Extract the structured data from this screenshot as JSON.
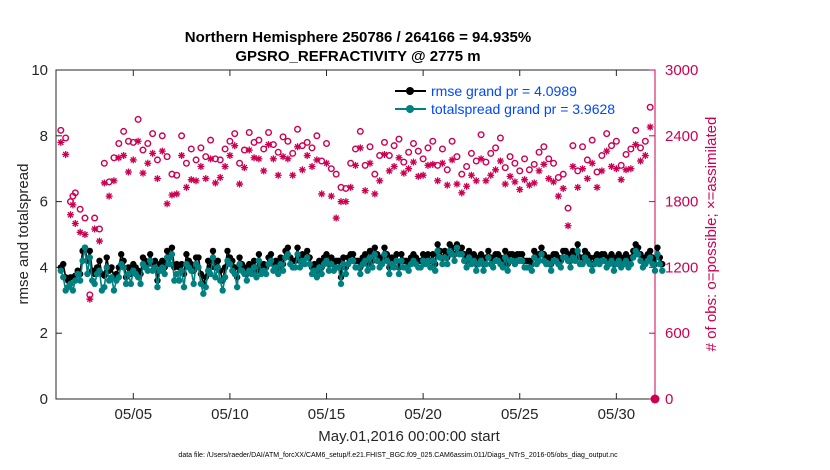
{
  "chart_data": {
    "type": "line",
    "title": "Northern Hemisphere 250786 / 264166 = 94.935%",
    "subtitle": "GPSRO_REFRACTIVITY @ 2775 m",
    "xlabel": "May.01,2016 00:00:00 start",
    "ylabel": "rmse and totalspread",
    "y2label": "# of obs: o=possible; ×=assimilated",
    "footer": "data file: /Users/raeder/DAI/ATM_forcXX/CAM6_setup/f.e21.FHIST_BGC.f09_025.CAM6assim.011/Diags_NTrS_2016-05/obs_diag_output.nc",
    "xlim": [
      1,
      32
    ],
    "ylim": [
      0,
      10
    ],
    "y2lim": [
      0,
      3000
    ],
    "xticks": [
      5,
      10,
      15,
      20,
      25,
      30
    ],
    "xticklabels": [
      "05/05",
      "05/10",
      "05/15",
      "05/20",
      "05/25",
      "05/30"
    ],
    "yticks": [
      0,
      2,
      4,
      6,
      8,
      10
    ],
    "yticklabels": [
      "0",
      "2",
      "4",
      "6",
      "8",
      "10"
    ],
    "y2ticks": [
      0,
      600,
      1200,
      1800,
      2400,
      3000
    ],
    "y2ticklabels": [
      "0",
      "600",
      "1200",
      "1800",
      "2400",
      "3000"
    ],
    "colors": {
      "rmse": "#000000",
      "spread": "#008080",
      "obs": "#cc0052",
      "legendText": "#0047ff"
    },
    "legend": [
      "rmse grand pr = 4.0989",
      "totalspread grand pr = 3.9628"
    ],
    "x_start": 1.25,
    "x_step": 0.125,
    "series": [
      {
        "name": "rmse",
        "values": [
          4.0,
          4.1,
          3.7,
          3.6,
          3.7,
          3.7,
          3.75,
          3.9,
          3.8,
          4.5,
          4.6,
          4.2,
          4.5,
          3.9,
          3.8,
          4.0,
          4.2,
          3.8,
          3.75,
          4.3,
          3.9,
          4.0,
          3.7,
          3.8,
          4.0,
          4.4,
          4.2,
          3.7,
          4.0,
          3.8,
          4.1,
          4.0,
          3.9,
          3.8,
          4.3,
          4.2,
          4.1,
          4.4,
          4.1,
          4.2,
          3.6,
          4.1,
          4.2,
          4.0,
          4.5,
          4.3,
          4.6,
          4.0,
          4.1,
          4.0,
          4.1,
          3.8,
          4.4,
          4.2,
          4.1,
          3.9,
          4.3,
          4.3,
          3.8,
          3.5,
          3.7,
          4.2,
          4.0,
          4.5,
          4.0,
          4.2,
          3.9,
          3.6,
          4.0,
          4.5,
          4.3,
          4.2,
          4.0,
          3.7,
          4.3,
          4.1,
          4.0,
          3.8,
          4.1,
          4.0,
          4.2,
          3.9,
          4.4,
          4.0,
          4.1,
          4.0,
          4.3,
          4.4,
          4.1,
          4.2,
          4.0,
          4.3,
          4.1,
          4.5,
          4.6,
          4.3,
          4.2,
          4.2,
          4.6,
          4.2,
          4.4,
          4.3,
          4.5,
          4.3,
          4.0,
          4.1,
          3.9,
          4.2,
          4.0,
          4.3,
          4.4,
          4.1,
          4.3,
          4.1,
          4.2,
          4.2,
          3.7,
          4.3,
          4.0,
          4.3,
          4.4,
          4.4,
          4.2,
          4.2,
          4.0,
          4.3,
          4.4,
          4.1,
          4.5,
          4.2,
          4.6,
          4.4,
          4.2,
          4.3,
          4.6,
          4.4,
          4.0,
          4.3,
          4.2,
          4.4,
          4.0,
          4.4,
          4.2,
          4.2,
          4.1,
          4.3,
          4.4,
          4.3,
          4.2,
          4.2,
          4.4,
          4.3,
          4.4,
          4.2,
          4.4,
          4.1,
          4.7,
          4.5,
          4.3,
          4.5,
          4.3,
          4.7,
          4.6,
          4.4,
          4.7,
          4.5,
          4.6,
          4.4,
          4.2,
          4.5,
          4.3,
          4.4,
          4.1,
          4.3,
          4.4,
          4.1,
          4.3,
          4.5,
          4.3,
          4.2,
          4.4,
          4.4,
          4.3,
          4.2,
          4.5,
          4.1,
          4.4,
          4.4,
          4.3,
          4.4,
          4.4,
          4.4,
          4.2,
          4.2,
          4.2,
          4.1,
          4.5,
          4.3,
          4.4,
          4.6,
          4.4,
          4.3,
          4.3,
          4.1,
          4.4,
          4.4,
          4.3,
          4.2,
          4.5,
          4.5,
          4.4,
          4.2,
          4.5,
          4.4,
          4.7,
          4.3,
          4.3,
          4.5,
          4.4,
          4.3,
          4.1,
          4.3,
          4.4,
          4.3,
          4.4,
          4.4,
          4.2,
          4.3,
          4.4,
          4.1,
          4.3,
          4.4,
          4.2,
          4.3,
          4.4,
          4.2,
          4.3,
          4.5,
          4.7,
          4.6,
          4.4,
          4.2,
          4.3,
          4.4,
          4.5,
          4.3,
          4.1,
          4.6,
          4.3,
          4.1
        ]
      },
      {
        "name": "totalspread",
        "values": [
          3.9,
          3.7,
          3.3,
          3.4,
          3.5,
          3.3,
          3.6,
          3.8,
          3.6,
          4.2,
          4.6,
          3.8,
          4.3,
          3.6,
          3.5,
          3.8,
          3.9,
          3.3,
          3.4,
          4.0,
          3.6,
          3.7,
          3.3,
          3.6,
          3.7,
          4.1,
          4.0,
          3.5,
          3.8,
          3.5,
          3.9,
          3.8,
          3.7,
          3.5,
          4.1,
          4.0,
          3.9,
          4.2,
          3.9,
          4.0,
          3.4,
          3.9,
          4.0,
          3.8,
          4.3,
          4.1,
          4.4,
          3.6,
          3.8,
          3.6,
          3.9,
          3.4,
          4.1,
          4.0,
          3.9,
          3.5,
          4.1,
          4.0,
          3.5,
          3.2,
          3.4,
          3.9,
          3.8,
          4.3,
          3.7,
          4.0,
          3.6,
          3.3,
          3.7,
          4.2,
          4.1,
          3.9,
          3.8,
          3.4,
          4.1,
          3.9,
          3.8,
          3.6,
          3.9,
          3.8,
          4.0,
          3.7,
          4.2,
          3.8,
          3.9,
          3.8,
          4.1,
          4.2,
          3.9,
          4.0,
          3.8,
          4.1,
          3.9,
          4.3,
          4.4,
          4.1,
          4.0,
          4.0,
          4.4,
          4.0,
          4.2,
          4.1,
          4.3,
          4.1,
          3.8,
          3.9,
          3.7,
          4.0,
          3.8,
          4.1,
          4.2,
          3.9,
          4.1,
          3.9,
          4.0,
          4.0,
          3.5,
          4.1,
          3.8,
          4.1,
          4.2,
          4.2,
          4.0,
          4.0,
          3.8,
          4.1,
          4.2,
          3.9,
          4.3,
          4.0,
          4.4,
          4.2,
          4.0,
          4.1,
          4.4,
          4.2,
          3.8,
          4.1,
          4.0,
          4.2,
          3.8,
          4.2,
          4.0,
          4.0,
          3.9,
          4.1,
          4.2,
          4.1,
          4.0,
          4.0,
          4.2,
          4.1,
          4.2,
          4.0,
          4.2,
          3.9,
          4.5,
          4.3,
          4.1,
          4.3,
          4.1,
          4.5,
          4.4,
          4.2,
          4.6,
          4.4,
          4.4,
          4.2,
          4.0,
          4.3,
          4.1,
          4.2,
          3.9,
          4.1,
          4.2,
          3.9,
          4.1,
          4.3,
          4.1,
          4.0,
          4.2,
          4.2,
          4.1,
          4.0,
          4.3,
          3.9,
          4.2,
          4.2,
          4.1,
          4.2,
          4.2,
          4.2,
          4.0,
          4.0,
          4.0,
          3.9,
          4.3,
          4.1,
          4.2,
          4.4,
          4.2,
          4.1,
          4.1,
          3.9,
          4.2,
          4.2,
          4.1,
          4.0,
          4.3,
          4.3,
          4.2,
          4.0,
          4.3,
          4.2,
          4.5,
          4.1,
          4.1,
          4.3,
          4.2,
          4.1,
          3.9,
          4.1,
          4.2,
          4.1,
          4.2,
          4.2,
          4.0,
          4.1,
          4.2,
          3.9,
          4.1,
          4.2,
          4.0,
          4.1,
          4.2,
          4.0,
          4.1,
          4.3,
          4.5,
          4.4,
          4.2,
          4.0,
          4.1,
          4.2,
          4.3,
          4.1,
          3.9,
          4.4,
          4.1,
          3.9
        ]
      }
    ],
    "obs_possible": {
      "x": [
        1.25,
        1.5,
        1.75,
        1.875,
        2.0,
        2.25,
        2.5,
        2.75,
        3.0,
        3.25,
        3.5,
        3.75,
        4.0,
        4.25,
        4.5,
        4.75,
        5.0,
        5.25,
        5.5,
        5.75,
        6.0,
        6.25,
        6.5,
        6.75,
        7.0,
        7.25,
        7.5,
        7.75,
        8.0,
        8.25,
        8.5,
        8.75,
        9.0,
        9.25,
        9.5,
        9.75,
        10.0,
        10.25,
        10.5,
        10.75,
        11.0,
        11.25,
        11.5,
        11.75,
        12.0,
        12.25,
        12.5,
        12.75,
        13.0,
        13.25,
        13.5,
        13.75,
        14.0,
        14.25,
        14.5,
        14.75,
        15.0,
        15.25,
        15.5,
        15.75,
        16.0,
        16.25,
        16.5,
        16.75,
        17.0,
        17.25,
        17.5,
        17.75,
        18.0,
        18.25,
        18.5,
        18.75,
        19.0,
        19.25,
        19.5,
        19.75,
        20.0,
        20.25,
        20.5,
        20.75,
        21.0,
        21.25,
        21.5,
        21.75,
        22.0,
        22.25,
        22.5,
        22.75,
        23.0,
        23.25,
        23.5,
        23.75,
        24.0,
        24.25,
        24.5,
        24.75,
        25.0,
        25.25,
        25.5,
        25.75,
        26.0,
        26.25,
        26.5,
        26.75,
        27.0,
        27.25,
        27.5,
        27.75,
        28.0,
        28.25,
        28.5,
        28.75,
        29.0,
        29.25,
        29.5,
        29.75,
        30.0,
        30.25,
        30.5,
        30.75,
        31.0,
        31.25,
        31.5,
        31.75
      ],
      "values": [
        2450,
        2380,
        1800,
        1850,
        1880,
        1730,
        1650,
        950,
        1650,
        1550,
        2150,
        1980,
        2200,
        2330,
        2440,
        2350,
        2340,
        2550,
        2270,
        2330,
        2420,
        2180,
        2400,
        2210,
        2050,
        2040,
        2400,
        2150,
        2280,
        2180,
        2290,
        2210,
        2360,
        2190,
        2180,
        2280,
        2350,
        2420,
        2150,
        2270,
        2430,
        2340,
        2360,
        2280,
        2430,
        2320,
        2250,
        2390,
        2350,
        2240,
        2460,
        2310,
        2340,
        2290,
        2400,
        2170,
        2330,
        2100,
        2050,
        1930,
        1920,
        2150,
        2280,
        2440,
        2130,
        2300,
        2050,
        2220,
        2340,
        2220,
        2310,
        2370,
        2160,
        2250,
        2330,
        2260,
        2190,
        2290,
        2350,
        2130,
        2280,
        2090,
        2350,
        2210,
        2050,
        2120,
        2240,
        2170,
        2410,
        2160,
        2240,
        2290,
        2380,
        2110,
        2210,
        2150,
        2080,
        2190,
        2090,
        2140,
        2250,
        2300,
        2190,
        2150,
        2020,
        2050,
        1740,
        2310,
        2080,
        2300,
        2180,
        2360,
        2070,
        2220,
        2420,
        2310,
        2350,
        2130,
        2230,
        2280,
        2450,
        2290,
        2350,
        2660
      ]
    },
    "obs_assimilated": {
      "x": [
        1.25,
        1.5,
        1.75,
        1.875,
        2.0,
        2.25,
        2.5,
        2.75,
        3.0,
        3.25,
        3.5,
        3.75,
        4.0,
        4.25,
        4.5,
        4.75,
        5.0,
        5.25,
        5.5,
        5.75,
        6.0,
        6.25,
        6.5,
        6.75,
        7.0,
        7.25,
        7.5,
        7.75,
        8.0,
        8.25,
        8.5,
        8.75,
        9.0,
        9.25,
        9.5,
        9.75,
        10.0,
        10.25,
        10.5,
        10.75,
        11.0,
        11.25,
        11.5,
        11.75,
        12.0,
        12.25,
        12.5,
        12.75,
        13.0,
        13.25,
        13.5,
        13.75,
        14.0,
        14.25,
        14.5,
        14.75,
        15.0,
        15.25,
        15.5,
        15.75,
        16.0,
        16.25,
        16.5,
        16.75,
        17.0,
        17.25,
        17.5,
        17.75,
        18.0,
        18.25,
        18.5,
        18.75,
        19.0,
        19.25,
        19.5,
        19.75,
        20.0,
        20.25,
        20.5,
        20.75,
        21.0,
        21.25,
        21.5,
        21.75,
        22.0,
        22.25,
        22.5,
        22.75,
        23.0,
        23.25,
        23.5,
        23.75,
        24.0,
        24.25,
        24.5,
        24.75,
        25.0,
        25.25,
        25.5,
        25.75,
        26.0,
        26.25,
        26.5,
        26.75,
        27.0,
        27.25,
        27.5,
        27.75,
        28.0,
        28.25,
        28.5,
        28.75,
        29.0,
        29.25,
        29.5,
        29.75,
        30.0,
        30.25,
        30.5,
        30.75,
        31.0,
        31.25,
        31.5,
        31.75
      ],
      "values": [
        2340,
        2230,
        1680,
        1770,
        1600,
        1520,
        1500,
        910,
        1550,
        1440,
        1970,
        1850,
        1990,
        2200,
        2220,
        2070,
        2180,
        2350,
        2060,
        2150,
        2240,
        2010,
        2260,
        1780,
        1860,
        1870,
        2220,
        1930,
        2000,
        1990,
        2120,
        2010,
        2190,
        1970,
        2020,
        2120,
        2220,
        2310,
        1960,
        2110,
        2270,
        2200,
        2190,
        2080,
        2320,
        2190,
        2040,
        2210,
        2190,
        2040,
        2300,
        2090,
        2220,
        2120,
        2180,
        1870,
        2150,
        1850,
        1650,
        1800,
        1800,
        1930,
        2130,
        2290,
        1900,
        2150,
        1870,
        1990,
        2230,
        2080,
        2120,
        2200,
        2060,
        2100,
        2160,
        2030,
        2040,
        2130,
        2140,
        1990,
        2150,
        1950,
        2180,
        1960,
        1880,
        1940,
        2040,
        1990,
        2190,
        1990,
        2040,
        2090,
        2170,
        1960,
        2030,
        1980,
        1910,
        2000,
        1950,
        1970,
        2080,
        2140,
        2010,
        1980,
        1850,
        1920,
        1580,
        2120,
        1930,
        2100,
        2010,
        2150,
        1930,
        2080,
        2260,
        2120,
        2100,
        2000,
        2090,
        2100,
        2320,
        2170,
        2220,
        2480
      ]
    }
  }
}
